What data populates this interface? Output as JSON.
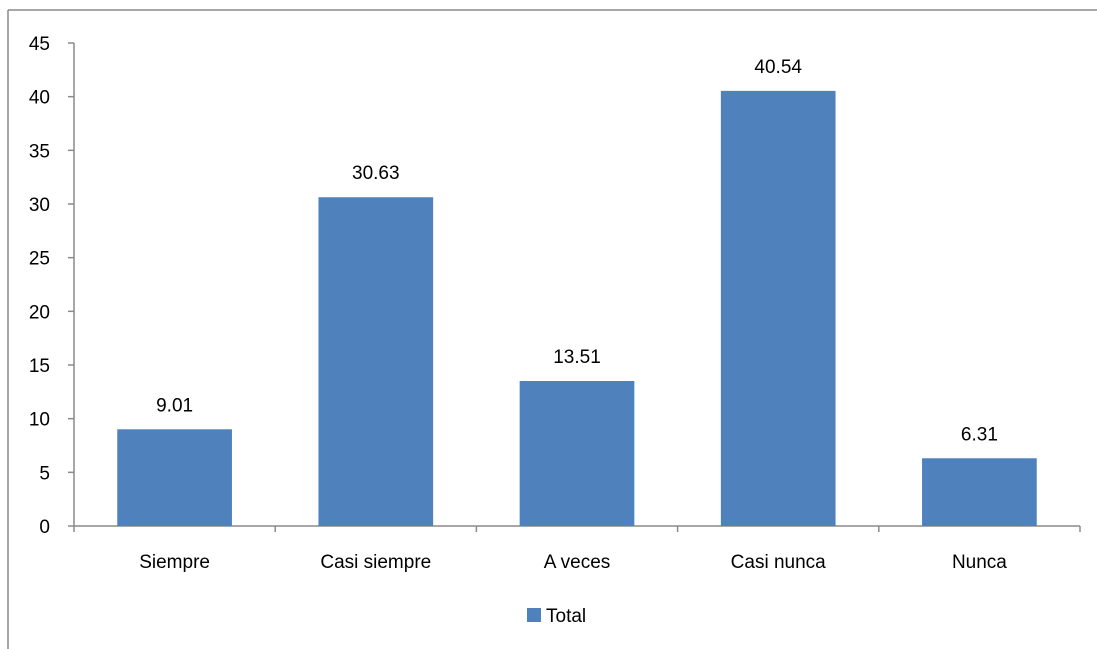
{
  "chart_data": {
    "type": "bar",
    "categories": [
      "Siempre",
      "Casi siempre",
      "A veces",
      "Casi nunca",
      "Nunca"
    ],
    "series": [
      {
        "name": "Total",
        "values": [
          9.01,
          30.63,
          13.51,
          40.54,
          6.31
        ],
        "color": "#4F81BD"
      }
    ],
    "ylim": [
      0,
      45
    ],
    "yticks": [
      0,
      5,
      10,
      15,
      20,
      25,
      30,
      35,
      40,
      45
    ],
    "data_labels": [
      "9.01",
      "30.63",
      "13.51",
      "40.54",
      "6.31"
    ],
    "legend": {
      "position": "bottom",
      "entries": [
        "Total"
      ]
    },
    "grid": false,
    "title": "",
    "xlabel": "",
    "ylabel": ""
  }
}
